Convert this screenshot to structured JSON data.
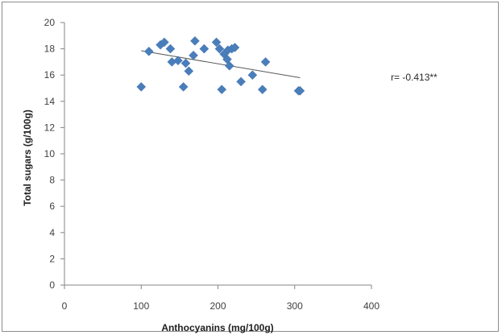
{
  "chart_data": {
    "type": "scatter",
    "title": "",
    "xlabel": "Anthocyanins (mg/100g)",
    "ylabel": "Total sugars (g/100g)",
    "xlim": [
      0,
      400
    ],
    "ylim": [
      0,
      20
    ],
    "x_ticks": [
      0,
      100,
      200,
      300,
      400
    ],
    "y_ticks": [
      0,
      2,
      4,
      6,
      8,
      10,
      12,
      14,
      16,
      18,
      20
    ],
    "grid": false,
    "legend": "none",
    "marker_color": "#4a7ebb",
    "trendline_color": "#595959",
    "series": [
      {
        "marker": "diamond",
        "points": [
          {
            "x": 100,
            "y": 15.1
          },
          {
            "x": 110,
            "y": 17.8
          },
          {
            "x": 125,
            "y": 18.3
          },
          {
            "x": 130,
            "y": 18.5
          },
          {
            "x": 138,
            "y": 18.0
          },
          {
            "x": 140,
            "y": 17.0
          },
          {
            "x": 148,
            "y": 17.1
          },
          {
            "x": 155,
            "y": 15.1
          },
          {
            "x": 158,
            "y": 16.9
          },
          {
            "x": 162,
            "y": 16.3
          },
          {
            "x": 168,
            "y": 17.5
          },
          {
            "x": 170,
            "y": 18.6
          },
          {
            "x": 182,
            "y": 18.0
          },
          {
            "x": 198,
            "y": 18.5
          },
          {
            "x": 202,
            "y": 18.0
          },
          {
            "x": 205,
            "y": 14.9
          },
          {
            "x": 208,
            "y": 17.6
          },
          {
            "x": 212,
            "y": 17.2
          },
          {
            "x": 213,
            "y": 17.9
          },
          {
            "x": 215,
            "y": 16.7
          },
          {
            "x": 218,
            "y": 18.0
          },
          {
            "x": 222,
            "y": 18.1
          },
          {
            "x": 230,
            "y": 15.5
          },
          {
            "x": 245,
            "y": 16.0
          },
          {
            "x": 258,
            "y": 14.9
          },
          {
            "x": 262,
            "y": 17.0
          },
          {
            "x": 305,
            "y": 14.8
          },
          {
            "x": 307,
            "y": 14.8
          }
        ]
      }
    ],
    "trendline": {
      "x": [
        100,
        307
      ],
      "y": [
        17.85,
        15.8
      ]
    },
    "annotation": "r= -0.413**"
  }
}
